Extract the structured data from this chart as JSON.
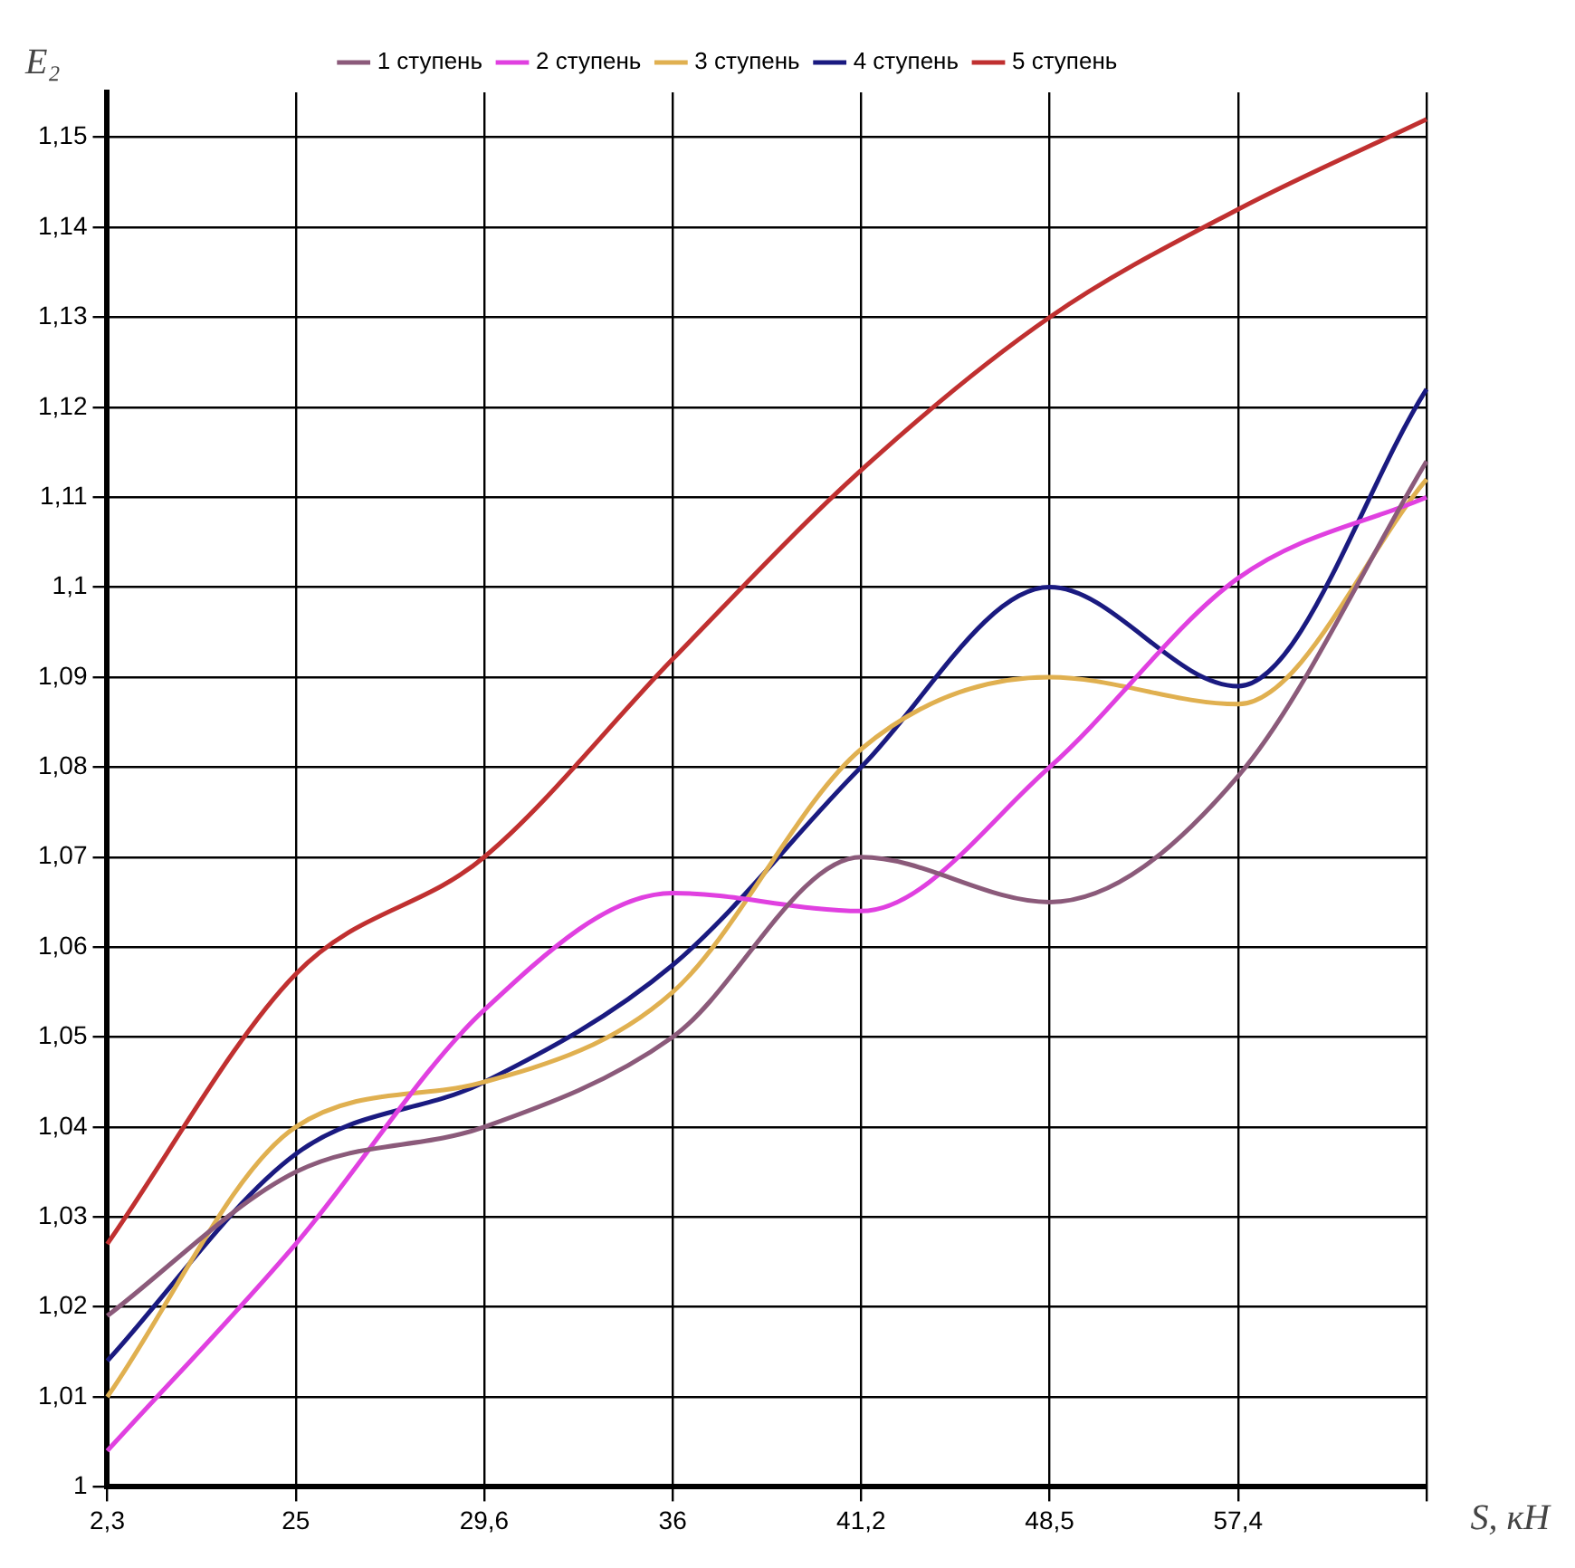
{
  "chart_data": {
    "type": "line",
    "xlabel": "S, кН",
    "ylabel": "E₂",
    "categories": [
      "2,3",
      "25",
      "29,6",
      "36",
      "41,2",
      "48,5",
      "57,4",
      null
    ],
    "series": [
      {
        "name": "1 ступень",
        "color": "#8b5a7a",
        "values": [
          1.019,
          1.035,
          1.04,
          1.05,
          1.07,
          1.065,
          1.079,
          1.114
        ]
      },
      {
        "name": "2 ступень",
        "color": "#e040e0",
        "values": [
          1.004,
          1.027,
          1.053,
          1.066,
          1.064,
          1.08,
          1.101,
          1.11
        ]
      },
      {
        "name": "3 ступень",
        "color": "#e0b050",
        "values": [
          1.01,
          1.04,
          1.045,
          1.055,
          1.082,
          1.09,
          1.087,
          1.112
        ]
      },
      {
        "name": "4 ступень",
        "color": "#1a1a80",
        "values": [
          1.014,
          1.037,
          1.045,
          1.058,
          1.08,
          1.1,
          1.089,
          1.122
        ]
      },
      {
        "name": "5 ступень",
        "color": "#c03030",
        "values": [
          1.027,
          1.057,
          1.07,
          1.092,
          1.113,
          1.13,
          1.142,
          1.152
        ]
      }
    ],
    "ylim": [
      1,
      1.155
    ],
    "yticks": [
      {
        "value": 1,
        "label": "1"
      },
      {
        "value": 1.01,
        "label": "1,01"
      },
      {
        "value": 1.02,
        "label": "1,02"
      },
      {
        "value": 1.03,
        "label": "1,03"
      },
      {
        "value": 1.04,
        "label": "1,04"
      },
      {
        "value": 1.05,
        "label": "1,05"
      },
      {
        "value": 1.06,
        "label": "1,06"
      },
      {
        "value": 1.07,
        "label": "1,07"
      },
      {
        "value": 1.08,
        "label": "1,08"
      },
      {
        "value": 1.09,
        "label": "1,09"
      },
      {
        "value": 1.1,
        "label": "1,1"
      },
      {
        "value": 1.11,
        "label": "1,11"
      },
      {
        "value": 1.12,
        "label": "1,12"
      },
      {
        "value": 1.13,
        "label": "1,13"
      },
      {
        "value": 1.14,
        "label": "1,14"
      },
      {
        "value": 1.15,
        "label": "1,15"
      }
    ],
    "grid": true,
    "legend": "top",
    "marker": "none",
    "line_style": "solid"
  }
}
